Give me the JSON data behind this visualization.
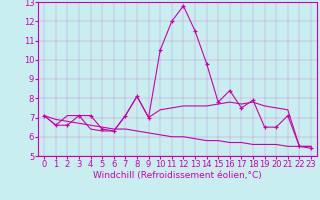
{
  "xlabel": "Windchill (Refroidissement éolien,°C)",
  "background_color": "#c8eef0",
  "line_color": "#cc00aa",
  "grid_color": "#aadddd",
  "xlim": [
    -0.5,
    23.5
  ],
  "ylim": [
    5,
    13
  ],
  "yticks": [
    5,
    6,
    7,
    8,
    9,
    10,
    11,
    12,
    13
  ],
  "xticks": [
    0,
    1,
    2,
    3,
    4,
    5,
    6,
    7,
    8,
    9,
    10,
    11,
    12,
    13,
    14,
    15,
    16,
    17,
    18,
    19,
    20,
    21,
    22,
    23
  ],
  "line1_x": [
    0,
    1,
    2,
    3,
    4,
    5,
    6,
    7,
    8,
    9,
    10,
    11,
    12,
    13,
    14,
    15,
    16,
    17,
    18,
    19,
    20,
    21,
    22,
    23
  ],
  "line1_y": [
    7.1,
    6.6,
    6.6,
    7.1,
    7.1,
    6.4,
    6.3,
    7.1,
    8.1,
    7.0,
    10.5,
    12.0,
    12.8,
    11.5,
    9.8,
    7.8,
    8.4,
    7.5,
    7.9,
    6.5,
    6.5,
    7.1,
    5.5,
    5.4
  ],
  "line2_x": [
    0,
    1,
    2,
    3,
    4,
    5,
    6,
    7,
    8,
    9,
    10,
    11,
    12,
    13,
    14,
    15,
    16,
    17,
    18,
    19,
    20,
    21,
    22,
    23
  ],
  "line2_y": [
    7.1,
    6.6,
    7.1,
    7.1,
    6.4,
    6.3,
    6.3,
    7.1,
    8.1,
    7.0,
    7.4,
    7.5,
    7.6,
    7.6,
    7.6,
    7.7,
    7.8,
    7.7,
    7.8,
    7.6,
    7.5,
    7.4,
    5.5,
    5.5
  ],
  "line3_x": [
    0,
    1,
    2,
    3,
    4,
    5,
    6,
    7,
    8,
    9,
    10,
    11,
    12,
    13,
    14,
    15,
    16,
    17,
    18,
    19,
    20,
    21,
    22,
    23
  ],
  "line3_y": [
    7.1,
    6.9,
    6.8,
    6.7,
    6.6,
    6.5,
    6.4,
    6.4,
    6.3,
    6.2,
    6.1,
    6.0,
    6.0,
    5.9,
    5.8,
    5.8,
    5.7,
    5.7,
    5.6,
    5.6,
    5.6,
    5.5,
    5.5,
    5.5
  ],
  "tick_fontsize": 6,
  "xlabel_fontsize": 6.5
}
